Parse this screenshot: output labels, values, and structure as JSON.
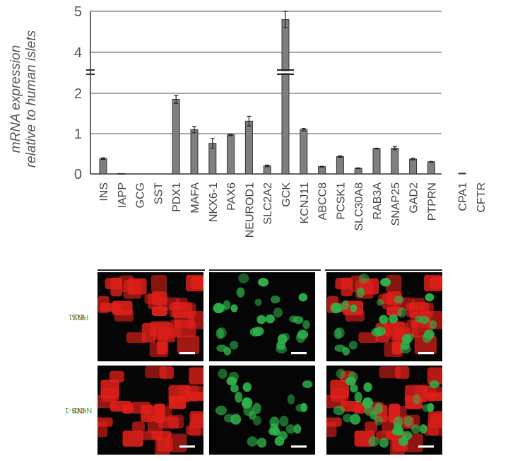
{
  "chart_data": {
    "type": "bar",
    "ylabel_line1": "mRNA expression",
    "ylabel_line2": "relative to human islets",
    "y_ticks": [
      "0",
      "1",
      "2",
      "4",
      "5"
    ],
    "y_axis_break": true,
    "categories": [
      "INS",
      "IAPP",
      "GCG",
      "SST",
      "PDX1",
      "MAFA",
      "NKX6-1",
      "PAX6",
      "NEUROD1",
      "SLC2A2",
      "GCK",
      "KCNJ11",
      "ABCC8",
      "PCSK1",
      "SLC30A8",
      "RAB3A",
      "SNAP25",
      "GAD2",
      "PTPRN",
      "CPA1",
      "CFTR"
    ],
    "values": [
      0.38,
      0.01,
      0.0,
      0.0,
      1.85,
      1.1,
      0.76,
      0.97,
      1.31,
      0.2,
      4.8,
      1.1,
      0.18,
      0.43,
      0.14,
      0.63,
      0.64,
      0.37,
      0.3,
      0.02,
      0.0
    ],
    "errors": [
      0.02,
      0.0,
      0.0,
      0.0,
      0.1,
      0.08,
      0.12,
      0.02,
      0.12,
      0.02,
      0.2,
      0.03,
      0.01,
      0.02,
      0.01,
      0.01,
      0.04,
      0.02,
      0.01,
      0.0,
      0.0
    ],
    "grid": true,
    "bar_color": "#7f7f7f"
  },
  "micrographs": {
    "row1_label_red": "INS",
    "row1_label_green": "PDX1",
    "row2_label_red": "INS",
    "row2_label_green": "NKX6-1",
    "colors": {
      "ins": "#e0201a",
      "marker": "#2fb34a"
    }
  }
}
